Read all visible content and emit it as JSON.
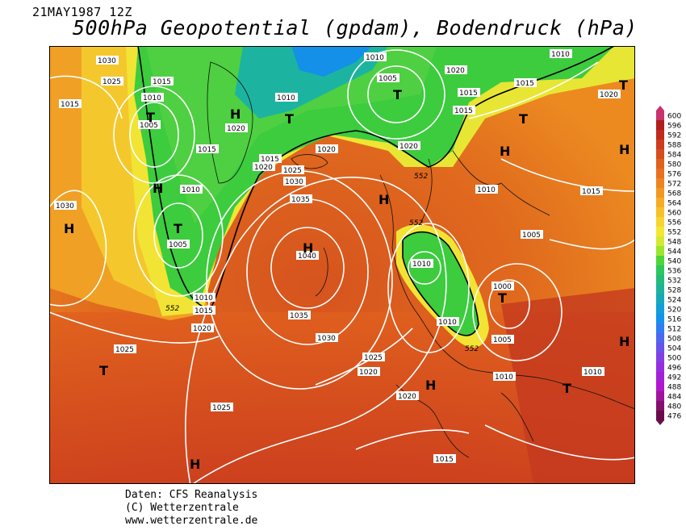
{
  "header": {
    "date": "21MAY1987 12Z",
    "title": "500hPa Geopotential (gpdam), Bodendruck (hPa)"
  },
  "footer": {
    "line1": "Daten: CFS Reanalysis",
    "line2": "(C) Wetterzentrale",
    "line3": "www.wetterzentrale.de"
  },
  "legend": {
    "levels": [
      "600",
      "596",
      "592",
      "588",
      "584",
      "580",
      "576",
      "572",
      "568",
      "564",
      "560",
      "556",
      "552",
      "548",
      "544",
      "540",
      "536",
      "532",
      "528",
      "524",
      "520",
      "516",
      "512",
      "508",
      "504",
      "500",
      "496",
      "492",
      "488",
      "484",
      "480",
      "476"
    ],
    "colors": [
      "#c8326e",
      "#b01e1e",
      "#c02a1e",
      "#cd3c1e",
      "#d64e1e",
      "#e0601e",
      "#e8701e",
      "#ee8420",
      "#f29822",
      "#f6ac26",
      "#f8c02a",
      "#f8d42e",
      "#f4e634",
      "#d4ea32",
      "#9ce62e",
      "#4cd63a",
      "#2cc85a",
      "#22bc7c",
      "#1cb29c",
      "#16a8bc",
      "#129ed8",
      "#1292ee",
      "#2e7ef2",
      "#4c68f0",
      "#6a52ea",
      "#8240e4",
      "#962ede",
      "#a420d8",
      "#b216cc",
      "#a0149c",
      "#84106c",
      "#6a0c4c"
    ]
  },
  "map": {
    "pressure_highs": [
      {
        "label": "H",
        "note": "1040"
      },
      {
        "label": "H",
        "note": "1020"
      }
    ],
    "symbols": [
      "H",
      "T"
    ],
    "isobar_labels": [
      "1030",
      "1025",
      "1015",
      "1010",
      "1005",
      "1000",
      "1020",
      "1035",
      "1040"
    ],
    "contour_552_label": "552",
    "accent": {
      "land_border": "#000000",
      "isobar": "#ffffff",
      "contour": "#000000"
    }
  }
}
